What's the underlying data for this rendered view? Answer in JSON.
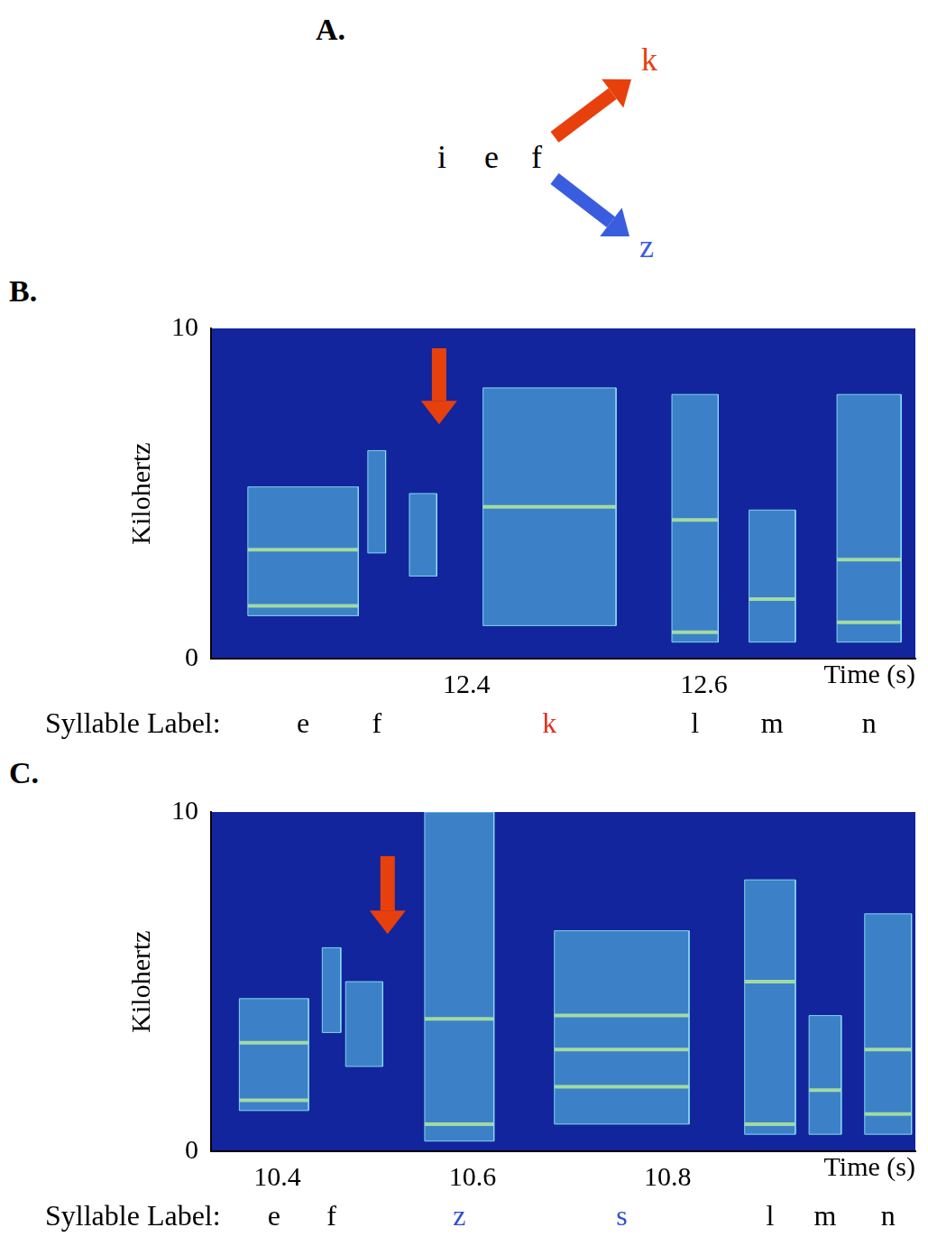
{
  "diagram": {
    "panel": "A.",
    "sequence": [
      "i",
      "e",
      "f"
    ],
    "branches": [
      {
        "label": "k",
        "color": "#e8400c"
      },
      {
        "label": "z",
        "color": "#3a5de0"
      }
    ]
  },
  "chart_data": [
    {
      "panel": "B.",
      "type": "spectrogram",
      "y_label": "Kilohertz",
      "x_label": "Time (s)",
      "row_title": "Syllable Label:",
      "xlim": [
        12.185,
        12.778
      ],
      "xticks": [
        12.4,
        12.6
      ],
      "ylim": [
        0,
        10
      ],
      "yticks": [
        0,
        10
      ],
      "arrows": [
        {
          "x": 12.377,
          "y_from": 9.4,
          "y_to": 7.1,
          "color": "#e8400c"
        }
      ],
      "syllables": [
        {
          "label": "e",
          "start": 12.216,
          "end": 12.309,
          "fmin": 1.3,
          "fmax": 5.2,
          "bands": [
            1.6,
            3.3
          ]
        },
        {
          "label": "f",
          "start": 12.317,
          "end": 12.332,
          "fmin": 3.2,
          "fmax": 6.3
        },
        {
          "start": 12.352,
          "end": 12.375,
          "fmin": 2.5,
          "fmax": 5.0
        },
        {
          "label": "k",
          "color": "#e0301e",
          "start": 12.414,
          "end": 12.526,
          "fmin": 1.0,
          "fmax": 8.2,
          "bands": [
            4.6
          ]
        },
        {
          "label": "l",
          "start": 12.573,
          "end": 12.612,
          "fmin": 0.5,
          "fmax": 8.0,
          "bands": [
            0.8,
            4.2
          ]
        },
        {
          "label": "m",
          "start": 12.638,
          "end": 12.677,
          "fmin": 0.5,
          "fmax": 4.5,
          "bands": [
            1.8
          ]
        },
        {
          "label": "n",
          "start": 12.712,
          "end": 12.766,
          "fmin": 0.5,
          "fmax": 8.0,
          "bands": [
            1.1,
            3.0
          ]
        }
      ]
    },
    {
      "panel": "C.",
      "type": "spectrogram",
      "y_label": "Kilohertz",
      "x_label": "Time (s)",
      "row_title": "Syllable Label:",
      "xlim": [
        10.332,
        11.054
      ],
      "xticks": [
        10.4,
        10.6,
        10.8
      ],
      "ylim": [
        0,
        10
      ],
      "yticks": [
        0,
        10
      ],
      "arrows": [
        {
          "x": 10.513,
          "y_from": 8.7,
          "y_to": 6.4,
          "color": "#e8400c"
        }
      ],
      "syllables": [
        {
          "label": "e",
          "start": 10.361,
          "end": 10.432,
          "fmin": 1.2,
          "fmax": 4.5,
          "bands": [
            1.5,
            3.2
          ]
        },
        {
          "label": "f",
          "start": 10.446,
          "end": 10.465,
          "fmin": 3.5,
          "fmax": 6.0
        },
        {
          "start": 10.47,
          "end": 10.508,
          "fmin": 2.5,
          "fmax": 5.0
        },
        {
          "label": "z",
          "color": "#3050d0",
          "start": 10.551,
          "end": 10.622,
          "fmin": 0.3,
          "fmax": 10.0,
          "bands": [
            0.8,
            3.9
          ]
        },
        {
          "label": "s",
          "color": "#3050d0",
          "start": 10.684,
          "end": 10.822,
          "fmin": 0.8,
          "fmax": 6.5,
          "bands": [
            1.9,
            3.0,
            4.0
          ]
        },
        {
          "label": "l",
          "start": 10.879,
          "end": 10.931,
          "fmin": 0.5,
          "fmax": 8.0,
          "bands": [
            0.8,
            5.0
          ]
        },
        {
          "label": "m",
          "start": 10.945,
          "end": 10.978,
          "fmin": 0.5,
          "fmax": 4.0,
          "bands": [
            1.8
          ]
        },
        {
          "label": "n",
          "start": 11.002,
          "end": 11.05,
          "fmin": 0.5,
          "fmax": 7.0,
          "bands": [
            1.1,
            3.0
          ]
        }
      ]
    }
  ]
}
